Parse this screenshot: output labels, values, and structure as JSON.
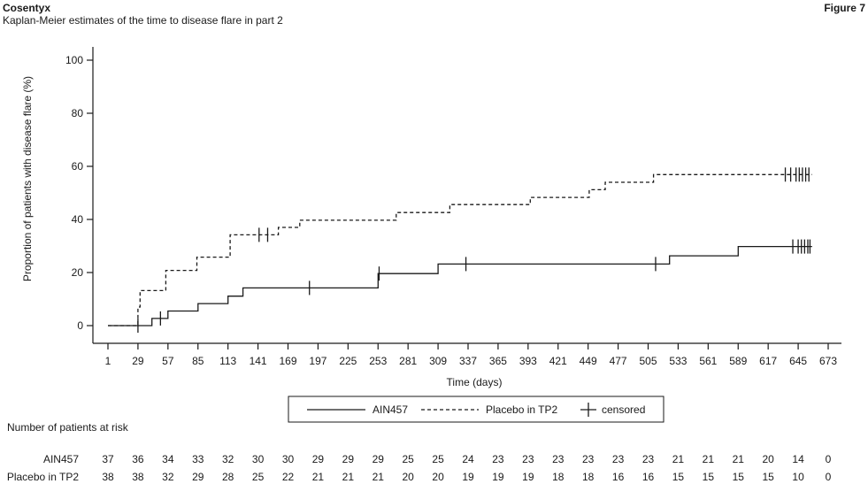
{
  "header": {
    "brand": "Cosentyx",
    "subtitle": "Kaplan-Meier estimates of the time to disease flare in part 2",
    "figure_label": "Figure 7"
  },
  "legend": {
    "ain457": "AIN457",
    "placebo": "Placebo in TP2",
    "censored": "censored"
  },
  "risk_table": {
    "title": "Number of patients at risk",
    "rows": [
      {
        "label": "AIN457",
        "counts": [
          "37",
          "36",
          "34",
          "33",
          "32",
          "30",
          "30",
          "29",
          "29",
          "29",
          "25",
          "25",
          "24",
          "23",
          "23",
          "23",
          "23",
          "23",
          "23",
          "21",
          "21",
          "21",
          "20",
          "14",
          "0"
        ]
      },
      {
        "label": "Placebo in TP2",
        "counts": [
          "38",
          "38",
          "32",
          "29",
          "28",
          "25",
          "22",
          "21",
          "21",
          "21",
          "20",
          "20",
          "19",
          "19",
          "19",
          "18",
          "18",
          "16",
          "16",
          "15",
          "15",
          "15",
          "15",
          "10",
          "0"
        ]
      }
    ]
  },
  "chart_data": {
    "type": "line",
    "xlabel": "Time (days)",
    "ylabel": "Proportion of patients with disease flare (%)",
    "xlim": [
      1,
      673
    ],
    "ylim": [
      0,
      100
    ],
    "x_ticks": [
      1,
      29,
      57,
      85,
      113,
      141,
      169,
      197,
      225,
      253,
      281,
      309,
      337,
      365,
      393,
      421,
      449,
      477,
      505,
      533,
      561,
      589,
      617,
      645,
      673
    ],
    "y_ticks": [
      0,
      20,
      40,
      60,
      80,
      100
    ],
    "legend_position": "bottom-center",
    "series": [
      {
        "name": "AIN457",
        "style": "solid",
        "steps": [
          [
            1,
            0
          ],
          [
            42,
            2.7
          ],
          [
            57,
            5.5
          ],
          [
            85,
            8.3
          ],
          [
            113,
            11.1
          ],
          [
            127,
            14.2
          ],
          [
            253,
            19.6
          ],
          [
            309,
            23.2
          ],
          [
            525,
            26.3
          ],
          [
            589,
            29.8
          ],
          [
            658,
            29.8
          ]
        ],
        "censored": [
          [
            29,
            0
          ],
          [
            50,
            2.7
          ],
          [
            189,
            14.2
          ],
          [
            254,
            19.6
          ],
          [
            335,
            23.2
          ],
          [
            512,
            23.2
          ],
          [
            640,
            29.8
          ],
          [
            645,
            29.8
          ],
          [
            648,
            29.8
          ],
          [
            651,
            29.8
          ],
          [
            654,
            29.8
          ],
          [
            656,
            29.8
          ]
        ]
      },
      {
        "name": "Placebo in TP2",
        "style": "dashed",
        "steps": [
          [
            1,
            0
          ],
          [
            29,
            7
          ],
          [
            31,
            13.2
          ],
          [
            55,
            20.8
          ],
          [
            84,
            25.8
          ],
          [
            115,
            34.2
          ],
          [
            160,
            37
          ],
          [
            180,
            39.7
          ],
          [
            270,
            42.6
          ],
          [
            320,
            45.6
          ],
          [
            395,
            48.3
          ],
          [
            450,
            51.2
          ],
          [
            465,
            54
          ],
          [
            510,
            56.9
          ],
          [
            658,
            56.9
          ]
        ],
        "censored": [
          [
            142,
            34.2
          ],
          [
            150,
            34.2
          ],
          [
            633,
            56.9
          ],
          [
            638,
            56.9
          ],
          [
            643,
            56.9
          ],
          [
            646,
            56.9
          ],
          [
            649,
            56.9
          ],
          [
            652,
            56.9
          ],
          [
            655,
            56.9
          ]
        ]
      }
    ]
  }
}
